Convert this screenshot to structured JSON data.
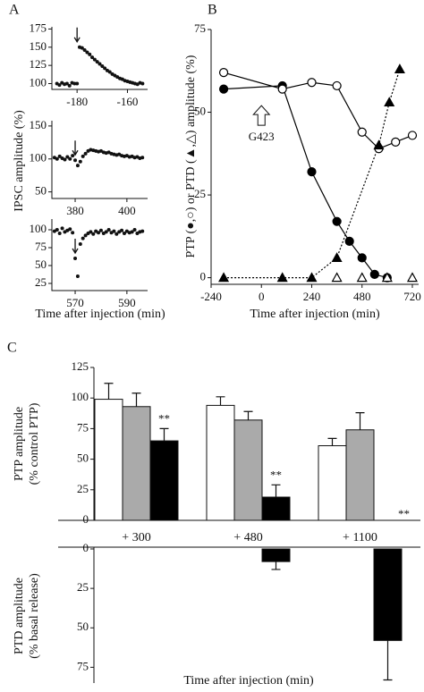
{
  "panels": [
    "A",
    "B",
    "C"
  ],
  "chart_data": [
    {
      "type": "scatter",
      "xlim": [
        -190,
        -152
      ],
      "ylim": [
        92,
        178
      ],
      "xticks": [
        -180,
        -160
      ],
      "yticks": [
        100,
        125,
        150,
        175
      ],
      "arrow_x": -180,
      "color": "#111111",
      "x": [
        -188,
        -187,
        -186,
        -185,
        -184,
        -183,
        -182,
        -181,
        -180,
        -179,
        -178,
        -177,
        -176,
        -175,
        -174,
        -173,
        -172,
        -171,
        -170,
        -169,
        -168,
        -167,
        -166,
        -165,
        -164,
        -163,
        -162,
        -161,
        -160,
        -159,
        -158,
        -157,
        -156,
        -155,
        -154
      ],
      "values": [
        100,
        98,
        101,
        99,
        100,
        97,
        101,
        100,
        100,
        150,
        149,
        146,
        143,
        140,
        136,
        133,
        130,
        127,
        124,
        121,
        118,
        116,
        113,
        111,
        109,
        107,
        106,
        104,
        103,
        102,
        101,
        100,
        99,
        101,
        100
      ]
    },
    {
      "type": "scatter",
      "xlim": [
        371,
        408
      ],
      "ylim": [
        40,
        158
      ],
      "xticks": [
        380,
        400
      ],
      "yticks": [
        50,
        100,
        150
      ],
      "arrow_x": 380,
      "color": "#111111",
      "y_label": "IPSC amplitude (%)",
      "x": [
        372,
        373,
        374,
        375,
        376,
        377,
        378,
        379,
        380,
        381,
        382,
        383,
        384,
        385,
        386,
        387,
        388,
        389,
        390,
        391,
        392,
        393,
        394,
        395,
        396,
        397,
        398,
        399,
        400,
        401,
        402,
        403,
        404,
        405,
        406
      ],
      "values": [
        102,
        100,
        104,
        101,
        99,
        103,
        100,
        105,
        98,
        90,
        96,
        104,
        108,
        112,
        114,
        113,
        112,
        111,
        112,
        110,
        109,
        110,
        108,
        107,
        106,
        107,
        105,
        104,
        105,
        103,
        104,
        102,
        103,
        101,
        102
      ]
    },
    {
      "type": "scatter",
      "xlim": [
        561,
        598
      ],
      "ylim": [
        15,
        115
      ],
      "xticks": [
        570,
        590
      ],
      "yticks": [
        25,
        50,
        75,
        100
      ],
      "arrow_x": 570,
      "color": "#111111",
      "x_label": "Time after injection (min)",
      "x": [
        562,
        563,
        564,
        565,
        566,
        567,
        568,
        569,
        570,
        571,
        572,
        573,
        574,
        575,
        576,
        577,
        578,
        579,
        580,
        581,
        582,
        583,
        584,
        585,
        586,
        587,
        588,
        589,
        590,
        591,
        592,
        593,
        594,
        595,
        596
      ],
      "values": [
        98,
        100,
        95,
        102,
        97,
        99,
        101,
        96,
        60,
        35,
        80,
        88,
        92,
        95,
        97,
        94,
        98,
        96,
        99,
        95,
        97,
        100,
        96,
        98,
        94,
        97,
        99,
        95,
        98,
        96,
        97,
        100,
        95,
        97,
        98
      ]
    },
    {
      "type": "line",
      "xlim": [
        -240,
        750
      ],
      "ylim": [
        -2,
        75
      ],
      "xticks": [
        -240,
        0,
        240,
        480,
        720
      ],
      "yticks": [
        0,
        25,
        50,
        75
      ],
      "x_label": "Time after injection (min)",
      "y_label": "PTP (●,○) or PTD (▲,△) amplitude (%)",
      "annotations": [
        {
          "text": "G423",
          "x": 0,
          "y": 52
        }
      ],
      "series": [
        {
          "color": "#000000",
          "marker": "circle",
          "fill": "#000000",
          "line": "solid",
          "x": [
            -180,
            100,
            240,
            360,
            420,
            480,
            540,
            600
          ],
          "values": [
            57,
            58,
            32,
            17,
            11,
            6,
            1,
            0
          ]
        },
        {
          "color": "#000000",
          "marker": "circle",
          "fill": "#ffffff",
          "line": "solid",
          "x": [
            -180,
            100,
            240,
            360,
            480,
            560,
            640,
            720
          ],
          "values": [
            62,
            57,
            59,
            58,
            44,
            39,
            41,
            43
          ]
        },
        {
          "color": "#000000",
          "marker": "triangle",
          "fill": "#000000",
          "line": "dotted",
          "x": [
            -180,
            100,
            240,
            360,
            560,
            610,
            660
          ],
          "values": [
            0,
            0,
            0,
            6,
            40,
            53,
            63
          ]
        },
        {
          "color": "#000000",
          "marker": "triangle",
          "fill": "#ffffff",
          "line": "none",
          "x": [
            360,
            480,
            600,
            720
          ],
          "values": [
            0,
            0,
            0,
            0
          ]
        }
      ]
    },
    {
      "type": "bar",
      "ylim": [
        0,
        125
      ],
      "yticks": [
        0,
        25,
        50,
        75,
        100,
        125
      ],
      "y_label": [
        "PTP amplitude",
        "(% control PTP)"
      ],
      "categories": [
        "+ 300",
        "+ 480",
        "+ 1100"
      ],
      "series": [
        {
          "color": "#ffffff",
          "values": [
            99,
            94,
            61
          ],
          "errors": [
            13,
            7,
            6
          ]
        },
        {
          "color": "#aaaaaa",
          "values": [
            93,
            82,
            74
          ],
          "errors": [
            11,
            7,
            14
          ]
        },
        {
          "color": "#000000",
          "values": [
            65,
            19,
            0
          ],
          "errors": [
            10,
            10,
            null
          ],
          "annotations": [
            "**",
            "**",
            "**"
          ]
        }
      ]
    },
    {
      "type": "bar",
      "ylim": [
        0,
        85
      ],
      "inverted": true,
      "yticks": [
        0,
        25,
        50,
        75
      ],
      "y_label": [
        "PTD amplitude",
        "(% basal release)"
      ],
      "x_label": "Time after injection (min)",
      "series": [
        {
          "color": "#000000",
          "values": [
            null,
            8,
            58
          ],
          "errors": [
            null,
            5,
            25
          ]
        }
      ]
    }
  ]
}
